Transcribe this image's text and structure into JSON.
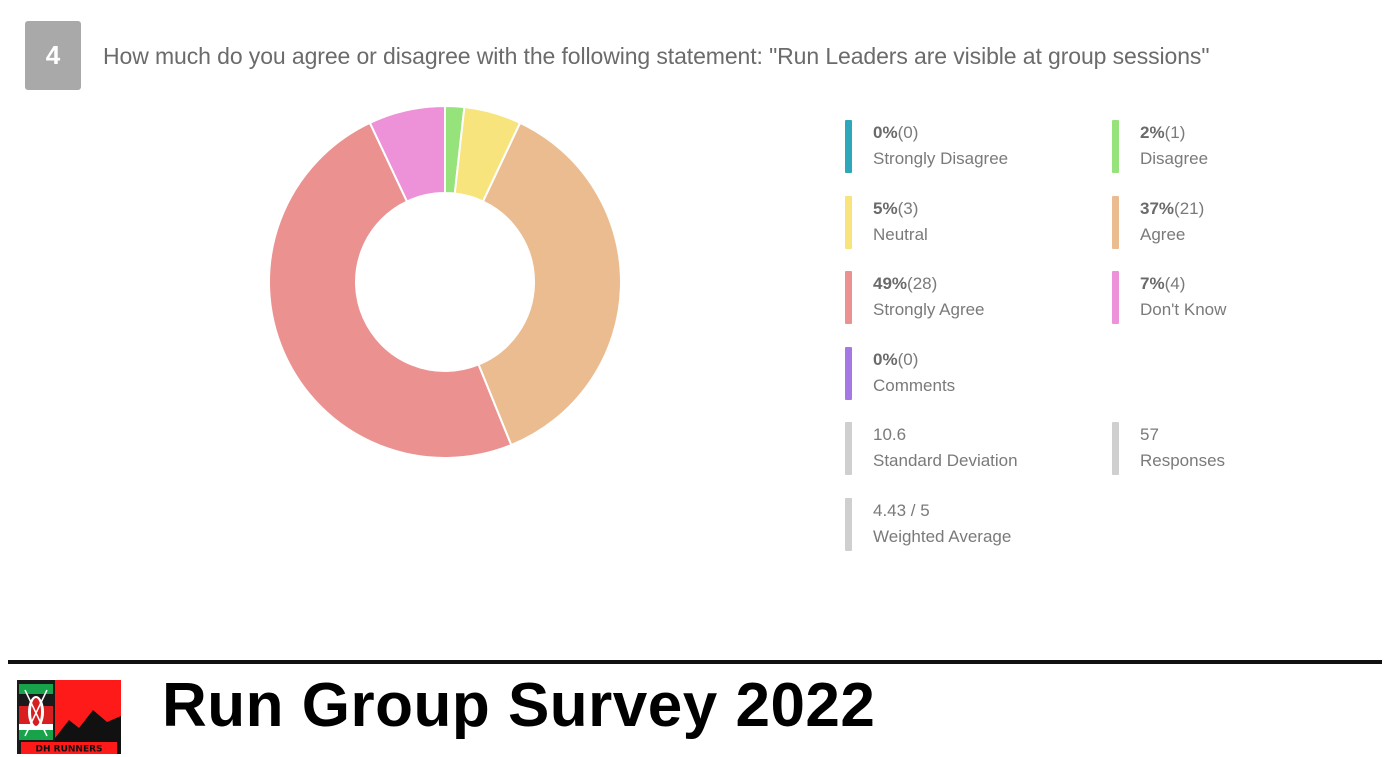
{
  "question": {
    "number": "4",
    "text": "How much do you agree or disagree with the following statement: \"Run Leaders are visible at group sessions\""
  },
  "chart_data": {
    "type": "pie",
    "donut": true,
    "title": "How much do you agree or disagree with the following statement: \"Run Leaders are visible at group sessions\"",
    "legend_position": "right",
    "slices": [
      {
        "label": "Strongly Disagree",
        "percent": "0%",
        "count": "(0)",
        "value": 0,
        "color": "#2fa7ba"
      },
      {
        "label": "Disagree",
        "percent": "2%",
        "count": "(1)",
        "value": 1,
        "color": "#96e27b"
      },
      {
        "label": "Neutral",
        "percent": "5%",
        "count": "(3)",
        "value": 3,
        "color": "#f7e47c"
      },
      {
        "label": "Agree",
        "percent": "37%",
        "count": "(21)",
        "value": 21,
        "color": "#ecbc91"
      },
      {
        "label": "Strongly Agree",
        "percent": "49%",
        "count": "(28)",
        "value": 28,
        "color": "#eb9190"
      },
      {
        "label": "Don't Know",
        "percent": "7%",
        "count": "(4)",
        "value": 4,
        "color": "#ed92d8"
      },
      {
        "label": "Comments",
        "percent": "0%",
        "count": "(0)",
        "value": 0,
        "color": "#a479e6"
      }
    ]
  },
  "stats": [
    {
      "value": "10.6",
      "label": "Standard Deviation",
      "color": "#cfcfcf"
    },
    {
      "value": "57",
      "label": "Responses",
      "color": "#cfcfcf"
    },
    {
      "value": "4.43 / 5",
      "label": "Weighted Average",
      "color": "#cfcfcf"
    }
  ],
  "footer": {
    "title": "Run Group Survey 2022",
    "logo_text": "DH RUNNERS"
  }
}
